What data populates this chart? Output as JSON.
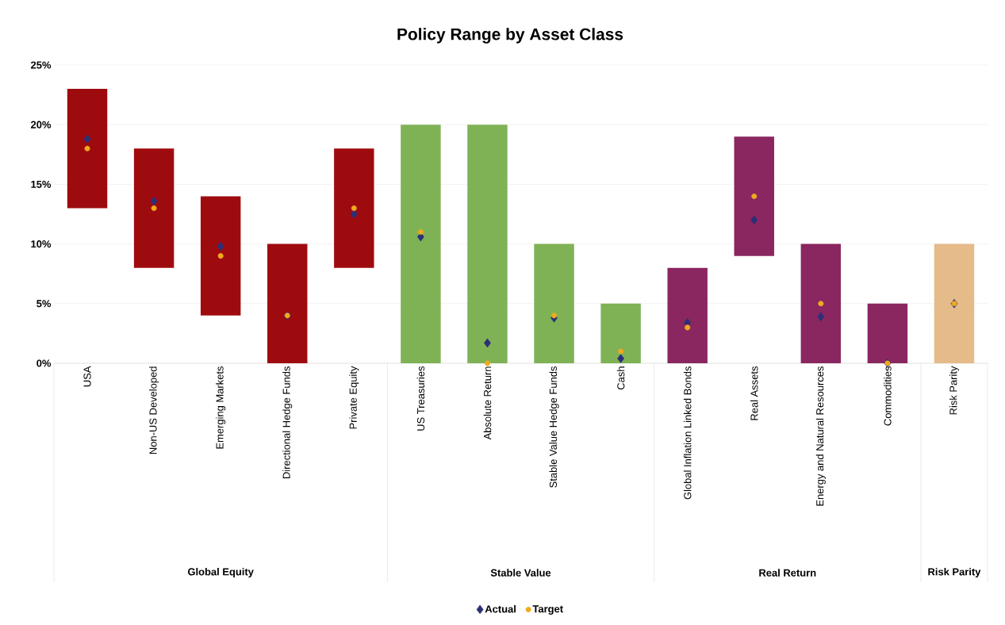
{
  "chart_data": {
    "type": "bar",
    "title": "Policy Range by Asset Class",
    "categories": [
      "USA",
      "Non-US Developed",
      "Emerging Markets",
      "Directional Hedge Funds",
      "Private Equity",
      "US Treasuries",
      "Absolute Return",
      "Stable Value Hedge Funds",
      "Cash",
      "Global Inflation Linked Bonds",
      "Real Assets",
      "Energy and Natural Resources",
      "Commodities",
      "Risk Parity"
    ],
    "series": [
      {
        "base": [
          13,
          8,
          4,
          0,
          8,
          0,
          0,
          0,
          0,
          0,
          9,
          0,
          0,
          0
        ],
        "values": [
          10,
          10,
          10,
          10,
          10,
          20,
          20,
          10,
          5,
          8,
          10,
          10,
          5,
          10
        ],
        "colors": [
          "#9e0b0f",
          "#9e0b0f",
          "#9e0b0f",
          "#9e0b0f",
          "#9e0b0f",
          "#7fb255",
          "#7fb255",
          "#7fb255",
          "#7fb255",
          "#8a2660",
          "#8a2660",
          "#8a2660",
          "#8a2660",
          "#e5bb8a"
        ]
      },
      {
        "type": "scatter",
        "name": "Actual",
        "marker": "diamond",
        "color": "#2b2f78",
        "values": [
          18.8,
          13.6,
          9.8,
          4,
          12.5,
          10.6,
          1.7,
          3.8,
          0.4,
          3.4,
          12,
          3.9,
          0,
          5
        ]
      },
      {
        "type": "scatter",
        "name": "Target",
        "marker": "circle",
        "color": "#f0aa1e",
        "values": [
          18,
          13,
          9,
          4,
          13,
          11,
          0,
          4,
          1,
          3,
          14,
          5,
          0,
          5
        ]
      }
    ],
    "ylim": [
      0,
      25
    ],
    "yticks": [
      {
        "value": 0,
        "label": "0%"
      },
      {
        "value": 5,
        "label": "5%"
      },
      {
        "value": 10,
        "label": "10%"
      },
      {
        "value": 15,
        "label": "15%"
      },
      {
        "value": 20,
        "label": "20%"
      },
      {
        "value": 25,
        "label": "25%"
      }
    ],
    "grid": "y",
    "legend": "bottom",
    "annotations": [
      "Global Equity",
      "Stable Value",
      "Real Return",
      "Risk Parity"
    ]
  }
}
